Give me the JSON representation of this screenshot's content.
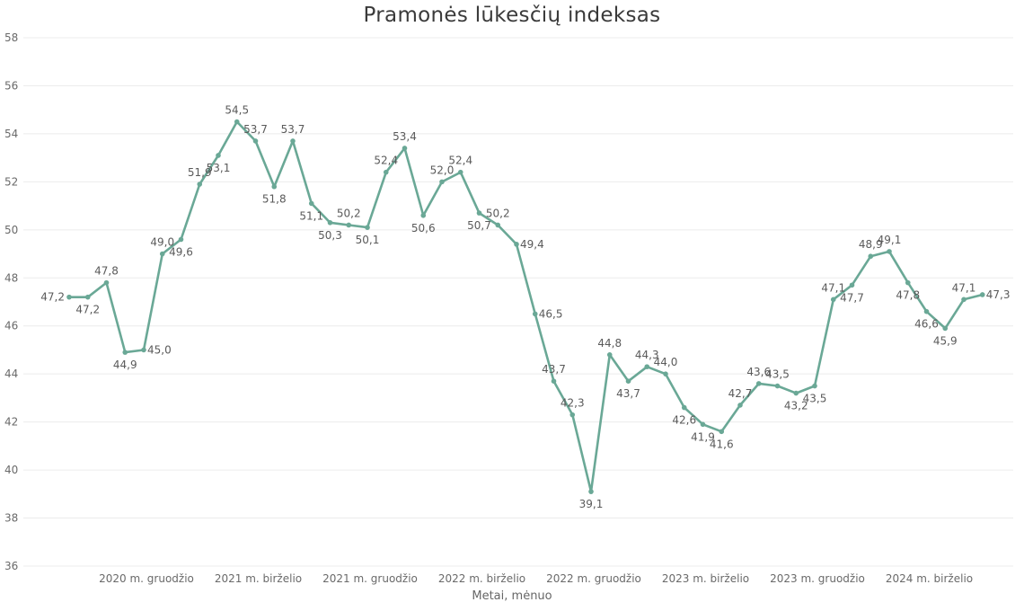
{
  "chart_data": {
    "type": "line",
    "title": "Pramonės lūkesčių indeksas",
    "xlabel": "Metai, mėnuo",
    "ylabel": "",
    "ylim": [
      36,
      58
    ],
    "yticks": [
      36,
      38,
      40,
      42,
      44,
      46,
      48,
      50,
      52,
      54,
      56,
      58
    ],
    "xtick_labels": [
      {
        "index": 4,
        "label": "2020 m. gruodžio"
      },
      {
        "index": 10,
        "label": "2021 m. birželio"
      },
      {
        "index": 16,
        "label": "2021 m. gruodžio"
      },
      {
        "index": 22,
        "label": "2022 m. birželio"
      },
      {
        "index": 28,
        "label": "2022 m. gruodžio"
      },
      {
        "index": 34,
        "label": "2023 m. birželio"
      },
      {
        "index": 40,
        "label": "2023 m. gruodžio"
      },
      {
        "index": 46,
        "label": "2024 m. birželio"
      }
    ],
    "grid": true,
    "color": "#6aa896",
    "series": [
      {
        "values": [
          47.2,
          47.2,
          47.8,
          44.9,
          45.0,
          49.0,
          49.6,
          51.9,
          53.1,
          54.5,
          53.7,
          51.8,
          53.7,
          51.1,
          50.3,
          50.2,
          50.1,
          52.4,
          53.4,
          50.6,
          52.0,
          52.4,
          50.7,
          50.2,
          49.4,
          46.5,
          43.7,
          42.3,
          39.1,
          44.8,
          43.7,
          44.3,
          44.0,
          42.6,
          41.9,
          41.6,
          42.7,
          43.6,
          43.5,
          43.2,
          43.5,
          47.1,
          47.7,
          48.9,
          49.1,
          47.8,
          46.6,
          45.9,
          47.1,
          47.3
        ],
        "labels": [
          "47,2",
          "47,2",
          "47,8",
          "44,9",
          "45,0",
          "49,0",
          "49,6",
          "51,9",
          "53,1",
          "54,5",
          "53,7",
          "51,8",
          "53,7",
          "51,1",
          "50,3",
          "50,2",
          "50,1",
          "52,4",
          "53,4",
          "50,6",
          "52,0",
          "52,4",
          "50,7",
          "50,2",
          "49,4",
          "46,5",
          "43,7",
          "42,3",
          "39,1",
          "44,8",
          "43,7",
          "44,3",
          "44,0",
          "42,6",
          "41,9",
          "41,6",
          "42,7",
          "43,6",
          "43,5",
          "43,2",
          "43,5",
          "47,1",
          "47,7",
          "48,9",
          "49,1",
          "47,8",
          "46,6",
          "45,9",
          "47,1",
          "47,3"
        ]
      }
    ]
  }
}
